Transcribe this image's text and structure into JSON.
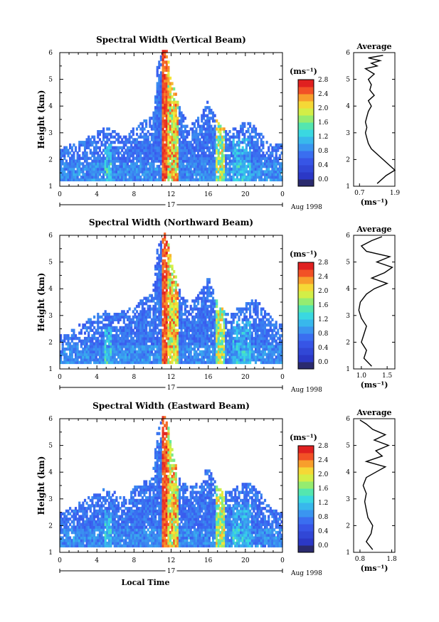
{
  "figure": {
    "xlabel": "Local Time",
    "ylabel": "Height (km)",
    "date_label": "Aug 1998",
    "day_label": "17",
    "colorbar_unit": "(ms⁻¹)",
    "avg_title": "Average",
    "avg_xlabel": "(ms⁻¹)"
  },
  "panels": [
    {
      "title": "Spectral Width (Vertical Beam)",
      "colorbar_ticks": [
        "0.0",
        "0.4",
        "0.8",
        "1.2",
        "1.6",
        "2.0",
        "2.4",
        "2.8"
      ],
      "avg_xticks": [
        "0.7",
        "1.9"
      ]
    },
    {
      "title": "Spectral Width (Northward Beam)",
      "colorbar_ticks": [
        "0.0",
        "0.4",
        "0.8",
        "1.2",
        "1.6",
        "2.0",
        "2.4",
        "2.8"
      ],
      "avg_xticks": [
        "1.0",
        "1.5"
      ]
    },
    {
      "title": "Spectral Width (Eastward Beam)",
      "colorbar_ticks": [
        "0.0",
        "0.4",
        "0.8",
        "1.2",
        "1.6",
        "2.0",
        "2.4",
        "2.8"
      ],
      "avg_xticks": [
        "0.8",
        "1.8"
      ]
    }
  ],
  "chart_data": [
    {
      "type": "heatmap",
      "title": "Spectral Width (Vertical Beam)",
      "xlabel": "",
      "ylabel": "Height (km)",
      "xlim": [
        0,
        24
      ],
      "ylim": [
        1,
        6
      ],
      "xticks": [
        "0",
        "4",
        "8",
        "12",
        "16",
        "20",
        "0"
      ],
      "yticks": [
        "1",
        "2",
        "3",
        "4",
        "5",
        "6"
      ],
      "colorbar": {
        "range": [
          0,
          3.0
        ],
        "ticks": [
          0.0,
          0.4,
          0.8,
          1.2,
          1.6,
          2.0,
          2.4,
          2.8
        ]
      },
      "top_of_echo_km": [
        [
          0,
          2.4
        ],
        [
          1,
          2.5
        ],
        [
          2,
          2.6
        ],
        [
          3,
          2.8
        ],
        [
          4,
          3.0
        ],
        [
          5,
          3.2
        ],
        [
          6,
          3.0
        ],
        [
          7,
          2.8
        ],
        [
          8,
          3.2
        ],
        [
          9,
          3.4
        ],
        [
          10,
          3.6
        ],
        [
          10.5,
          5.5
        ],
        [
          11,
          6.0
        ],
        [
          11.5,
          6.0
        ],
        [
          12,
          5.0
        ],
        [
          13,
          3.8
        ],
        [
          14,
          3.2
        ],
        [
          15,
          3.6
        ],
        [
          16,
          4.2
        ],
        [
          17,
          3.4
        ],
        [
          18,
          3.0
        ],
        [
          19,
          3.2
        ],
        [
          20,
          3.4
        ],
        [
          21,
          3.2
        ],
        [
          22,
          2.8
        ],
        [
          23,
          2.6
        ],
        [
          24,
          2.6
        ]
      ],
      "average": {
        "title": "Average",
        "xlabel": "(ms⁻¹)",
        "xticks": [
          0.7,
          1.9
        ],
        "xlim": [
          0.5,
          1.9
        ],
        "height": [
          1.1,
          1.4,
          1.6,
          1.8,
          2.0,
          2.2,
          2.4,
          2.6,
          2.8,
          3.0,
          3.2,
          3.4,
          3.6,
          3.8,
          4.0,
          4.2,
          4.4,
          4.6,
          4.8,
          5.0,
          5.2,
          5.4,
          5.5,
          5.6,
          5.7,
          5.8,
          5.9
        ],
        "value": [
          1.3,
          1.6,
          1.9,
          1.7,
          1.5,
          1.3,
          1.1,
          1.0,
          0.95,
          0.9,
          0.95,
          0.9,
          0.95,
          1.0,
          1.1,
          1.0,
          1.2,
          1.05,
          1.1,
          1.0,
          1.2,
          0.9,
          1.3,
          1.1,
          1.4,
          1.0,
          1.5
        ]
      }
    },
    {
      "type": "heatmap",
      "title": "Spectral Width (Northward Beam)",
      "xlabel": "",
      "ylabel": "Height (km)",
      "xlim": [
        0,
        24
      ],
      "ylim": [
        1,
        6
      ],
      "xticks": [
        "0",
        "4",
        "8",
        "12",
        "16",
        "20",
        "0"
      ],
      "yticks": [
        "1",
        "2",
        "3",
        "4",
        "5",
        "6"
      ],
      "colorbar": {
        "range": [
          0,
          3.0
        ],
        "ticks": [
          0.0,
          0.4,
          0.8,
          1.2,
          1.6,
          2.0,
          2.4,
          2.8
        ]
      },
      "top_of_echo_km": [
        [
          0,
          2.2
        ],
        [
          1,
          2.4
        ],
        [
          2,
          2.6
        ],
        [
          3,
          2.8
        ],
        [
          4,
          3.0
        ],
        [
          5,
          3.2
        ],
        [
          6,
          3.0
        ],
        [
          7,
          3.2
        ],
        [
          8,
          3.4
        ],
        [
          9,
          3.6
        ],
        [
          10,
          3.8
        ],
        [
          10.5,
          5.5
        ],
        [
          11,
          6.0
        ],
        [
          11.5,
          6.0
        ],
        [
          12,
          5.0
        ],
        [
          13,
          3.8
        ],
        [
          14,
          3.4
        ],
        [
          15,
          3.8
        ],
        [
          16,
          4.4
        ],
        [
          17,
          3.4
        ],
        [
          18,
          3.0
        ],
        [
          19,
          3.2
        ],
        [
          20,
          3.4
        ],
        [
          21,
          3.6
        ],
        [
          22,
          3.2
        ],
        [
          23,
          2.8
        ],
        [
          24,
          2.6
        ]
      ],
      "average": {
        "title": "Average",
        "xlabel": "(ms⁻¹)",
        "xticks": [
          1.0,
          1.5
        ],
        "xlim": [
          0.85,
          1.65
        ],
        "height": [
          1.1,
          1.4,
          1.7,
          2.0,
          2.3,
          2.6,
          2.9,
          3.2,
          3.5,
          3.8,
          4.0,
          4.2,
          4.4,
          4.6,
          4.8,
          5.0,
          5.2,
          5.4,
          5.6,
          5.8,
          5.95
        ],
        "value": [
          1.2,
          1.05,
          1.1,
          1.0,
          1.05,
          1.1,
          1.0,
          0.95,
          0.98,
          1.1,
          1.25,
          1.5,
          1.2,
          1.45,
          1.6,
          1.3,
          1.55,
          1.1,
          1.0,
          1.2,
          1.4
        ]
      }
    },
    {
      "type": "heatmap",
      "title": "Spectral Width (Eastward Beam)",
      "xlabel": "Local Time",
      "ylabel": "Height (km)",
      "xlim": [
        0,
        24
      ],
      "ylim": [
        1,
        6
      ],
      "xticks": [
        "0",
        "4",
        "8",
        "12",
        "16",
        "20",
        "0"
      ],
      "yticks": [
        "1",
        "2",
        "3",
        "4",
        "5",
        "6"
      ],
      "colorbar": {
        "range": [
          0,
          3.0
        ],
        "ticks": [
          0.0,
          0.4,
          0.8,
          1.2,
          1.6,
          2.0,
          2.4,
          2.8
        ]
      },
      "top_of_echo_km": [
        [
          0,
          2.4
        ],
        [
          1,
          2.6
        ],
        [
          2,
          2.8
        ],
        [
          3,
          3.0
        ],
        [
          4,
          3.2
        ],
        [
          5,
          3.4
        ],
        [
          6,
          3.2
        ],
        [
          7,
          3.0
        ],
        [
          8,
          3.4
        ],
        [
          9,
          3.6
        ],
        [
          10,
          3.8
        ],
        [
          10.5,
          5.5
        ],
        [
          11,
          6.0
        ],
        [
          11.5,
          6.0
        ],
        [
          12,
          5.0
        ],
        [
          13,
          3.6
        ],
        [
          14,
          3.4
        ],
        [
          15,
          3.6
        ],
        [
          16,
          4.2
        ],
        [
          17,
          3.4
        ],
        [
          18,
          3.2
        ],
        [
          19,
          3.4
        ],
        [
          20,
          3.6
        ],
        [
          21,
          3.4
        ],
        [
          22,
          3.0
        ],
        [
          23,
          2.6
        ],
        [
          24,
          2.4
        ]
      ],
      "average": {
        "title": "Average",
        "xlabel": "(ms⁻¹)",
        "xticks": [
          0.8,
          1.8
        ],
        "xlim": [
          0.6,
          1.9
        ],
        "height": [
          1.1,
          1.4,
          1.7,
          2.0,
          2.3,
          2.6,
          2.9,
          3.2,
          3.5,
          3.8,
          4.0,
          4.2,
          4.4,
          4.6,
          4.8,
          5.0,
          5.2,
          5.4,
          5.6,
          5.8,
          5.95
        ],
        "value": [
          1.2,
          1.0,
          1.15,
          1.2,
          1.05,
          1.0,
          0.95,
          1.0,
          0.9,
          1.0,
          1.3,
          1.6,
          1.0,
          1.5,
          1.3,
          1.7,
          1.25,
          1.6,
          1.2,
          1.0,
          0.8
        ]
      }
    }
  ]
}
